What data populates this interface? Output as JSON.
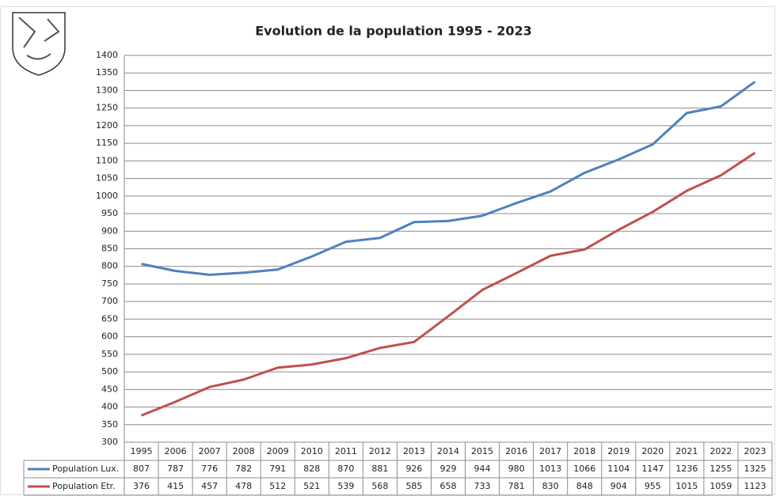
{
  "chart_data": {
    "type": "line",
    "title": "Evolution de la population 1995 - 2023",
    "categories": [
      "1995",
      "2006",
      "2007",
      "2008",
      "2009",
      "2010",
      "2011",
      "2012",
      "2013",
      "2014",
      "2015",
      "2016",
      "2017",
      "2018",
      "2019",
      "2020",
      "2021",
      "2022",
      "2023"
    ],
    "series": [
      {
        "name": "Population Lux.",
        "color": "#4f81bd",
        "values": [
          807,
          787,
          776,
          782,
          791,
          828,
          870,
          881,
          926,
          929,
          944,
          980,
          1013,
          1066,
          1104,
          1147,
          1236,
          1255,
          1325
        ]
      },
      {
        "name": "Population Etr.",
        "color": "#c0504d",
        "values": [
          376,
          415,
          457,
          478,
          512,
          521,
          539,
          568,
          585,
          658,
          733,
          781,
          830,
          848,
          904,
          955,
          1015,
          1059,
          1123
        ]
      }
    ],
    "ylim": [
      300,
      1400
    ],
    "yticks": [
      300,
      350,
      400,
      450,
      500,
      550,
      600,
      650,
      700,
      750,
      800,
      850,
      900,
      950,
      1000,
      1050,
      1100,
      1150,
      1200,
      1250,
      1300,
      1350,
      1400
    ],
    "grid": true
  }
}
